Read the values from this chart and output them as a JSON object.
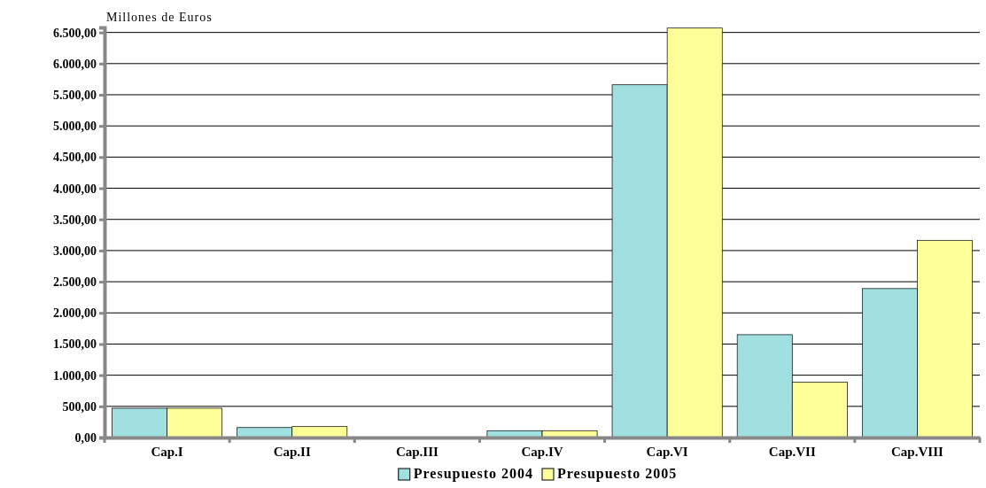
{
  "chart_data": {
    "type": "bar",
    "ylabel": "Millones de Euros",
    "categories": [
      "Cap.I",
      "Cap.II",
      "Cap.III",
      "Cap.IV",
      "Cap.VI",
      "Cap.VII",
      "Cap.VIII"
    ],
    "series": [
      {
        "name": "Presupuesto 2004",
        "color": "#a0e0e0",
        "values": [
          470,
          160,
          0,
          110,
          5660,
          1650,
          2390
        ]
      },
      {
        "name": "Presupuesto 2005",
        "color": "#ffff99",
        "values": [
          470,
          175,
          0,
          110,
          6570,
          890,
          3165
        ]
      }
    ],
    "ylim": [
      0,
      6580
    ],
    "yticks": [
      {
        "value": 0,
        "label": "0,00"
      },
      {
        "value": 500,
        "label": "500,00"
      },
      {
        "value": 1000,
        "label": "1.000,00"
      },
      {
        "value": 1500,
        "label": "1.500,00"
      },
      {
        "value": 2000,
        "label": "2.000,00"
      },
      {
        "value": 2500,
        "label": "2.500,00"
      },
      {
        "value": 3000,
        "label": "3.000,00"
      },
      {
        "value": 3500,
        "label": "3.500,00"
      },
      {
        "value": 4000,
        "label": "4.000,00"
      },
      {
        "value": 4500,
        "label": "4.500,00"
      },
      {
        "value": 5000,
        "label": "5.000,00"
      },
      {
        "value": 5500,
        "label": "5.500,00"
      },
      {
        "value": 6000,
        "label": "6.000,00"
      },
      {
        "value": 6500,
        "label": "6.500,00"
      }
    ],
    "grid": "y",
    "legend": "bottom"
  }
}
